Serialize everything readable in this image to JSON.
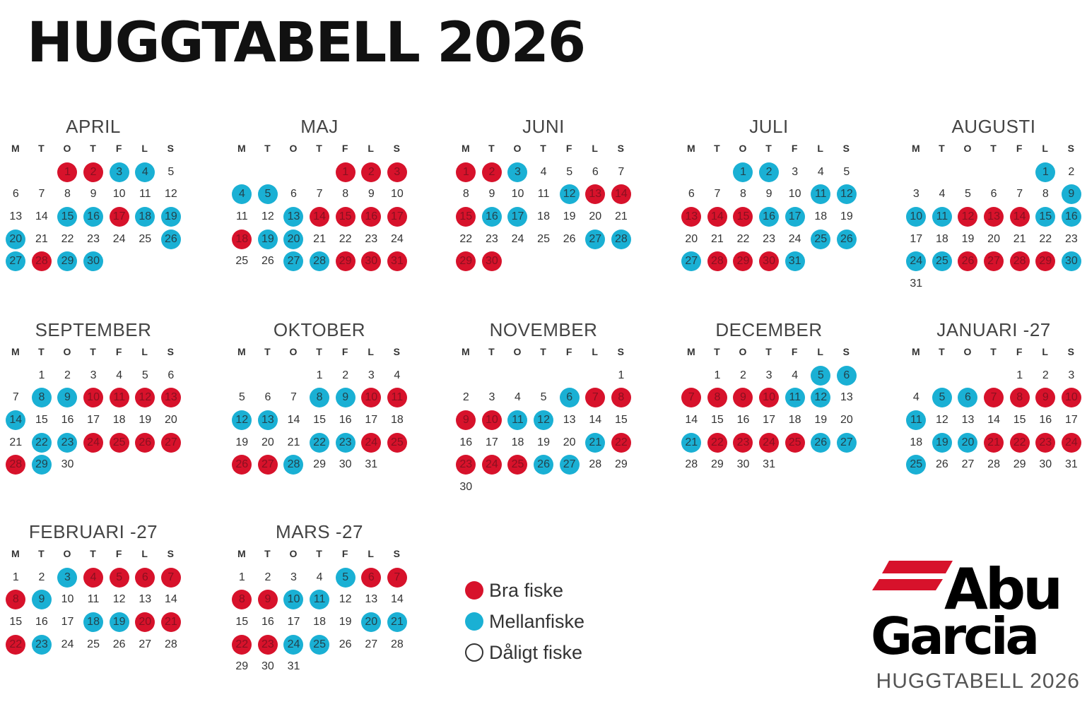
{
  "title": "HUGGTABELL 2026",
  "footer_title": "HUGGTABELL 2026",
  "weekdays": [
    "M",
    "T",
    "O",
    "T",
    "F",
    "L",
    "S"
  ],
  "colors": {
    "good": "#d7122b",
    "medium": "#1ab0d4",
    "poor": "#ffffff"
  },
  "legend": [
    {
      "label": "Bra fiske",
      "type": "good"
    },
    {
      "label": "Mellanfiske",
      "type": "mid"
    },
    {
      "label": "Dåligt fiske",
      "type": "poor"
    }
  ],
  "logo": {
    "line1": "Abu",
    "line2": "Garcia"
  },
  "months": [
    {
      "name": "APRIL",
      "first_weekday": 3,
      "days": 30,
      "good": [
        1,
        2,
        17,
        28
      ],
      "mid": [
        3,
        4,
        15,
        16,
        18,
        19,
        20,
        26,
        27,
        29,
        30
      ]
    },
    {
      "name": "MAJ",
      "first_weekday": 5,
      "days": 31,
      "good": [
        1,
        2,
        3,
        14,
        15,
        16,
        17,
        18,
        29,
        30,
        31
      ],
      "mid": [
        4,
        5,
        13,
        19,
        20,
        27,
        28
      ]
    },
    {
      "name": "JUNI",
      "first_weekday": 1,
      "days": 30,
      "good": [
        1,
        2,
        13,
        14,
        15,
        29,
        30
      ],
      "mid": [
        3,
        12,
        16,
        17,
        27,
        28
      ]
    },
    {
      "name": "JULI",
      "first_weekday": 3,
      "days": 31,
      "good": [
        13,
        14,
        15,
        28,
        29,
        30
      ],
      "mid": [
        1,
        2,
        11,
        12,
        16,
        17,
        25,
        26,
        27,
        31
      ]
    },
    {
      "name": "AUGUSTI",
      "first_weekday": 6,
      "days": 31,
      "good": [
        12,
        13,
        14,
        26,
        27,
        28,
        29
      ],
      "mid": [
        1,
        9,
        10,
        11,
        15,
        16,
        24,
        25,
        30
      ]
    },
    {
      "name": "SEPTEMBER",
      "first_weekday": 2,
      "days": 30,
      "good": [
        10,
        11,
        12,
        13,
        24,
        25,
        26,
        27,
        28
      ],
      "mid": [
        8,
        9,
        14,
        22,
        23,
        29
      ]
    },
    {
      "name": "OKTOBER",
      "first_weekday": 4,
      "days": 31,
      "good": [
        10,
        11,
        24,
        25,
        26,
        27
      ],
      "mid": [
        8,
        9,
        12,
        13,
        22,
        23,
        28
      ]
    },
    {
      "name": "NOVEMBER",
      "first_weekday": 7,
      "days": 30,
      "good": [
        7,
        8,
        9,
        10,
        22,
        23,
        24,
        25
      ],
      "mid": [
        6,
        11,
        12,
        21,
        26,
        27
      ]
    },
    {
      "name": "DECEMBER",
      "first_weekday": 2,
      "days": 31,
      "good": [
        7,
        8,
        9,
        10,
        22,
        23,
        24,
        25
      ],
      "mid": [
        5,
        6,
        11,
        12,
        21,
        26,
        27
      ]
    },
    {
      "name": "JANUARI -27",
      "first_weekday": 5,
      "days": 31,
      "good": [
        7,
        8,
        9,
        10,
        21,
        22,
        23,
        24
      ],
      "mid": [
        5,
        6,
        11,
        19,
        20,
        25
      ]
    },
    {
      "name": "FEBRUARI -27",
      "first_weekday": 1,
      "days": 28,
      "good": [
        4,
        5,
        6,
        7,
        8,
        20,
        21,
        22
      ],
      "mid": [
        3,
        9,
        18,
        19,
        23
      ]
    },
    {
      "name": "MARS -27",
      "first_weekday": 1,
      "days": 31,
      "good": [
        6,
        7,
        8,
        9,
        22,
        23
      ],
      "mid": [
        5,
        10,
        11,
        20,
        21,
        24,
        25
      ]
    }
  ]
}
